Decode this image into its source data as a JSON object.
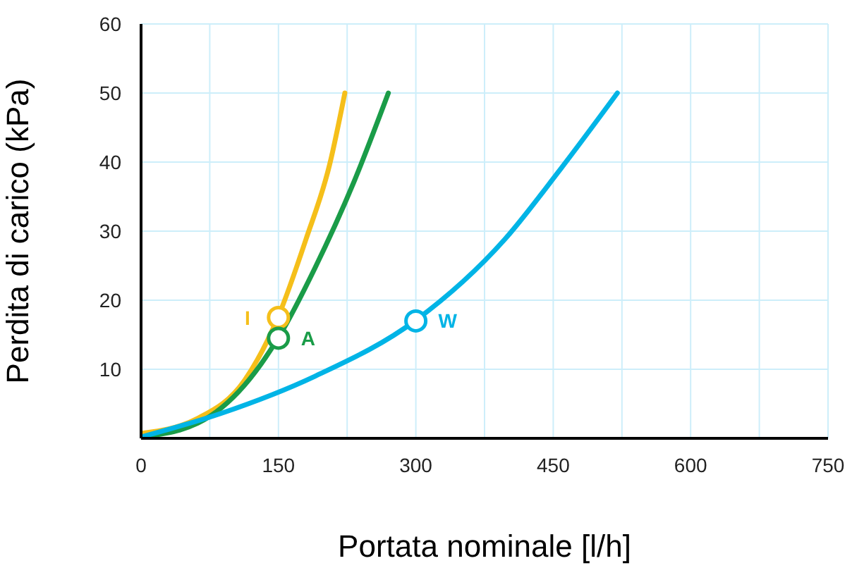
{
  "chart_data": {
    "type": "line",
    "xlabel": "Portata nominale [l/h]",
    "ylabel": "Perdita di carico (kPa)",
    "xlim": [
      0,
      750
    ],
    "ylim": [
      0,
      60
    ],
    "xticks": [
      0,
      {
        "value": 75,
        "label": null
      },
      150,
      {
        "value": 225,
        "label": null
      },
      300,
      {
        "value": 375,
        "label": null
      },
      450,
      {
        "value": 525,
        "label": null
      },
      600,
      {
        "value": 675,
        "label": null
      },
      750
    ],
    "yticks": [
      {
        "value": 0,
        "label": null
      },
      10,
      20,
      30,
      40,
      50,
      60
    ],
    "grid": true,
    "line_style": "solid",
    "series": [
      {
        "color": "#f5bf1a",
        "x": [
          0,
          62,
          113,
          150,
          180,
          206,
          222.5
        ],
        "values": [
          0.7,
          2.9,
          8.4,
          17.7,
          28.8,
          39.7,
          50
        ]
      },
      {
        "color": "#1a9c48",
        "x": [
          0,
          62,
          113,
          150,
          190,
          232,
          270
        ],
        "values": [
          0.2,
          2.2,
          7.7,
          14.6,
          24.7,
          37,
          50
        ]
      },
      {
        "color": "#00b4e6",
        "x": [
          0,
          87,
          190,
          300,
          397,
          458,
          520
        ],
        "values": [
          0.2,
          3.6,
          9,
          17.1,
          28.8,
          39,
          50
        ]
      },
      {
        "type": "scatter",
        "name": "I",
        "color": "#f5bf1a",
        "marker": "circle",
        "x": [
          150
        ],
        "values": [
          17.5
        ]
      },
      {
        "type": "scatter",
        "name": "A",
        "color": "#1a9c48",
        "marker": "circle",
        "x": [
          150
        ],
        "values": [
          14.5
        ]
      },
      {
        "type": "scatter",
        "name": "W",
        "color": "#00b4e6",
        "marker": "circle",
        "x": [
          300
        ],
        "values": [
          17
        ]
      }
    ]
  }
}
